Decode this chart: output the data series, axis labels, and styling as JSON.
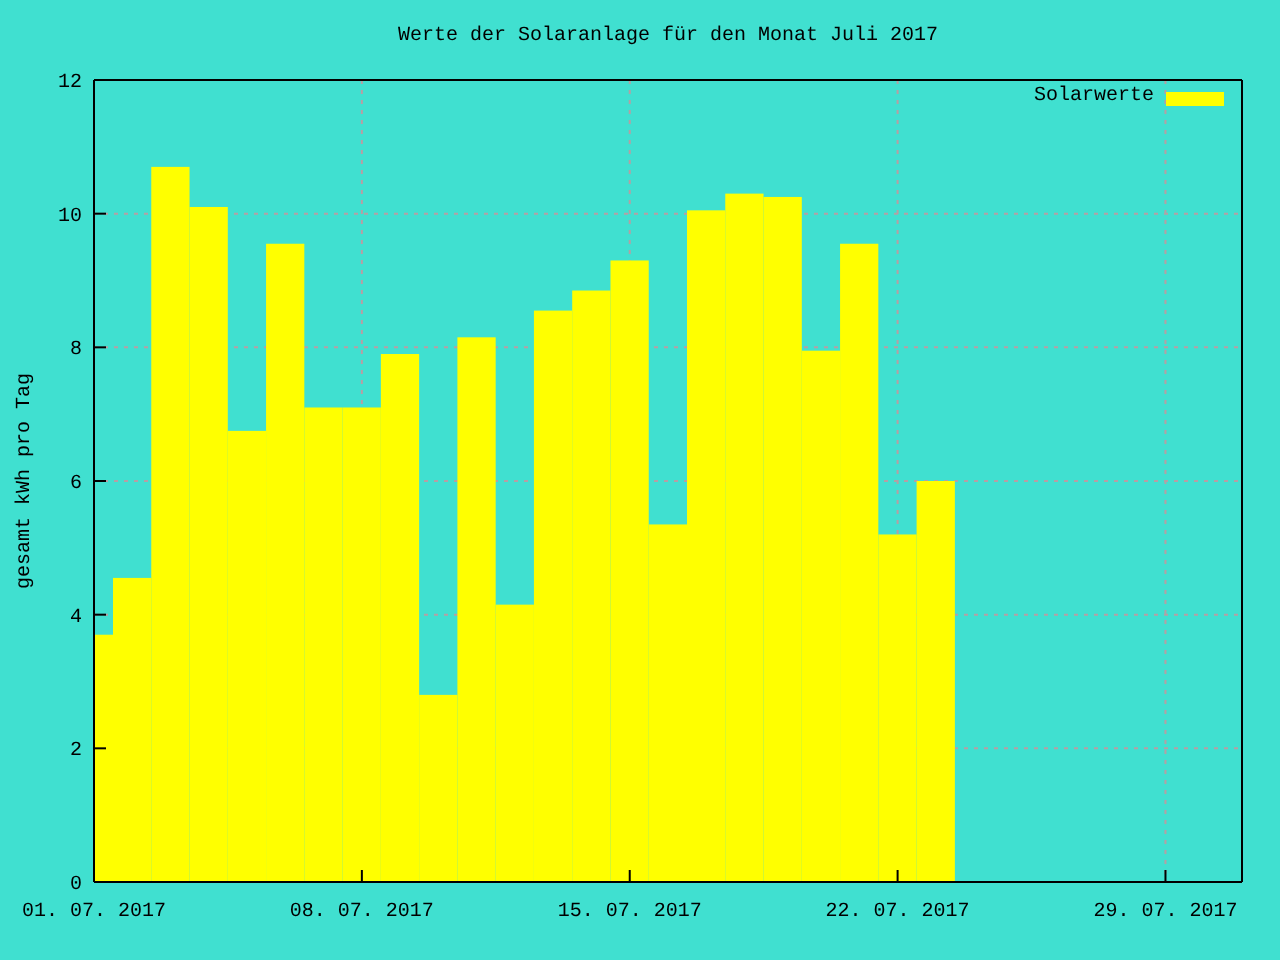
{
  "chart_data": {
    "type": "bar",
    "title": "Werte der Solaranlage für den Monat Juli 2017",
    "ylabel": "gesamt kWh pro Tag",
    "x": [
      "2017-07-01",
      "2017-07-02",
      "2017-07-03",
      "2017-07-04",
      "2017-07-05",
      "2017-07-06",
      "2017-07-07",
      "2017-07-08",
      "2017-07-09",
      "2017-07-10",
      "2017-07-11",
      "2017-07-12",
      "2017-07-13",
      "2017-07-14",
      "2017-07-15",
      "2017-07-16",
      "2017-07-17",
      "2017-07-18",
      "2017-07-19",
      "2017-07-20",
      "2017-07-21",
      "2017-07-22",
      "2017-07-23"
    ],
    "series": [
      {
        "name": "Solarwerte",
        "color": "#ffff00",
        "values": [
          3.7,
          4.55,
          10.7,
          10.1,
          6.75,
          9.55,
          7.1,
          7.1,
          7.9,
          2.8,
          8.15,
          4.15,
          8.55,
          8.85,
          9.3,
          5.35,
          10.05,
          10.3,
          10.25,
          7.95,
          9.55,
          5.2,
          6.0
        ]
      }
    ],
    "xlim": [
      "2017-07-01",
      "2017-07-31"
    ],
    "xticks": [
      {
        "value": "2017-07-01",
        "label": "01. 07. 2017"
      },
      {
        "value": "2017-07-08",
        "label": "08. 07. 2017"
      },
      {
        "value": "2017-07-15",
        "label": "15. 07. 2017"
      },
      {
        "value": "2017-07-22",
        "label": "22. 07. 2017"
      },
      {
        "value": "2017-07-29",
        "label": "29. 07. 2017"
      }
    ],
    "ylim": [
      0,
      12
    ],
    "yticks": [
      0,
      2,
      4,
      6,
      8,
      10,
      12
    ],
    "grid": true,
    "legend": "top right"
  }
}
